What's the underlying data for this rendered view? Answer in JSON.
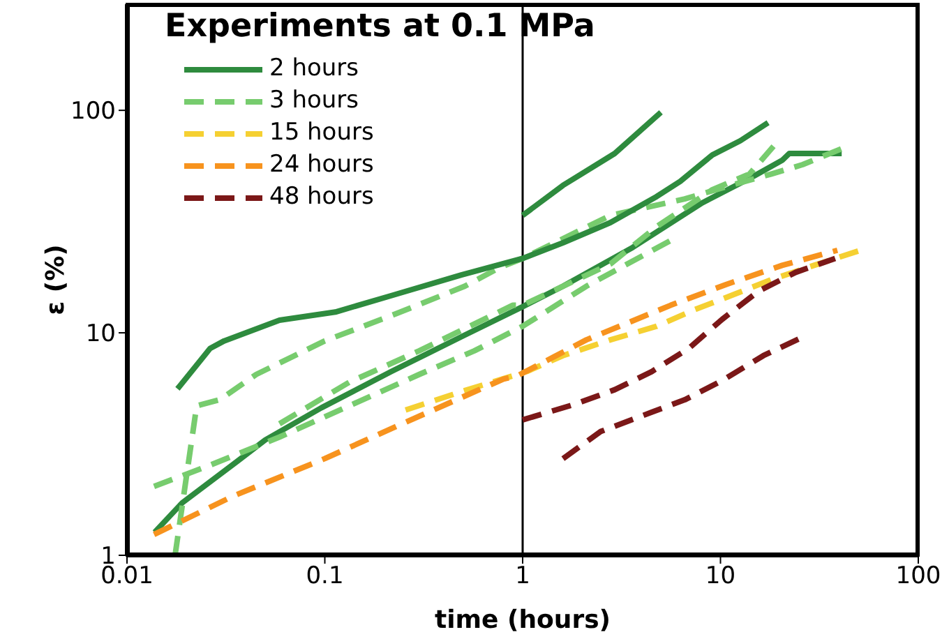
{
  "chart_data": {
    "type": "line",
    "title": "Experiments at 0.1 MPa",
    "xlabel": "time (hours)",
    "ylabel": "ε (%)",
    "log": "xy",
    "xlim": [
      0.01,
      100
    ],
    "xticks": [
      0.01,
      0.1,
      1,
      10,
      100
    ],
    "ylim": [
      1,
      300
    ],
    "yticks": [
      1,
      10,
      100
    ],
    "grid": false,
    "legend": "top left",
    "marker": "none",
    "ref_lines": [
      {
        "axis": "x",
        "value": 1,
        "color": "#000000"
      }
    ],
    "series": [
      {
        "name": "2 hours",
        "color": "#2e8b3e",
        "line_style": "solid",
        "x": [
          0.0138,
          0.019,
          0.036,
          0.05,
          0.096,
          0.217,
          0.49,
          1,
          1.6,
          3.6,
          8.1,
          14.1,
          20.5,
          22.3,
          41
        ],
        "values": [
          1.27,
          1.72,
          2.64,
          3.3,
          4.6,
          6.7,
          9.6,
          13.1,
          16.2,
          24.2,
          38.4,
          49.5,
          59.6,
          64,
          64
        ]
      },
      {
        "name": "3 hours",
        "color": "#77cc6e",
        "line_style": "dashed",
        "x": [
          0.0175,
          0.0225,
          0.0294,
          0.045,
          0.1,
          0.23,
          0.51,
          0.76,
          1,
          2.78,
          6.6,
          11.3,
          18,
          26,
          44
        ],
        "values": [
          1,
          4.7,
          5,
          6.5,
          9.2,
          12.2,
          16.2,
          19.6,
          21.6,
          33.7,
          40,
          46,
          51.7,
          57,
          69
        ]
      },
      {
        "name": "15 hours",
        "color": "#f5d032",
        "line_style": "dashed",
        "x": [
          0.256,
          0.51,
          1.05,
          1.6,
          2.78,
          4.76,
          7.4,
          11.3,
          18.3,
          29.7,
          51
        ],
        "values": [
          4.5,
          5.5,
          6.7,
          7.9,
          9.3,
          10.7,
          12.7,
          14.7,
          17.4,
          20.1,
          23.5
        ]
      },
      {
        "name": "24 hours",
        "color": "#f7931e",
        "line_style": "dashed",
        "x": [
          0.0137,
          0.0346,
          0.1,
          0.23,
          0.8,
          0.94,
          2.1,
          5.6,
          10.7,
          20.5,
          39
        ],
        "values": [
          1.24,
          1.85,
          2.72,
          3.8,
          6.2,
          6.4,
          9.3,
          13.3,
          16.5,
          20.1,
          23.5
        ]
      },
      {
        "name": "48 hours",
        "color": "#7b1818",
        "line_style": "dashed",
        "x": [
          1,
          1.8,
          2.92,
          4.5,
          6.9,
          10.2,
          15.6,
          24,
          38
        ],
        "values": [
          4.06,
          4.75,
          5.55,
          6.7,
          8.5,
          11.5,
          15.4,
          18.7,
          21.6
        ]
      },
      {
        "color": "#2e8b3e",
        "line_style": "solid",
        "x": [
          0.018,
          0.0263,
          0.031,
          0.059,
          0.113,
          0.217,
          0.49,
          1,
          1.6,
          2.78,
          4.76,
          6.27,
          9.1,
          12.6,
          17.4
        ],
        "values": [
          5.6,
          8.5,
          9.2,
          11.4,
          12.4,
          14.7,
          18.2,
          21.6,
          25.4,
          31.3,
          41,
          48,
          63,
          73,
          88
        ]
      },
      {
        "color": "#2e8b3e",
        "line_style": "solid",
        "x": [
          1,
          1.6,
          2.92,
          5
        ],
        "values": [
          33.7,
          46,
          64,
          98
        ]
      },
      {
        "color": "#77cc6e",
        "line_style": "dashed",
        "x": [
          0.0137,
          0.026,
          0.059,
          0.133,
          0.3,
          0.57,
          1,
          2.1,
          5.6
        ],
        "values": [
          2.04,
          2.53,
          3.4,
          4.7,
          6.5,
          8.3,
          10.7,
          16.2,
          26
        ]
      },
      {
        "color": "#77cc6e",
        "line_style": "dashed",
        "x": [
          0.059,
          0.133,
          0.3,
          0.89,
          1,
          2.78,
          4.76,
          9.1,
          14,
          19.6
        ],
        "values": [
          3.9,
          6,
          8.3,
          13.3,
          13.3,
          20.4,
          30,
          44,
          51.7,
          73
        ]
      },
      {
        "color": "#7b1818",
        "line_style": "dashed",
        "x": [
          1.6,
          2.48,
          4.5,
          6.6,
          10.2,
          16.5,
          25
        ],
        "values": [
          2.72,
          3.6,
          4.4,
          5,
          6.1,
          7.9,
          9.4
        ]
      }
    ]
  }
}
